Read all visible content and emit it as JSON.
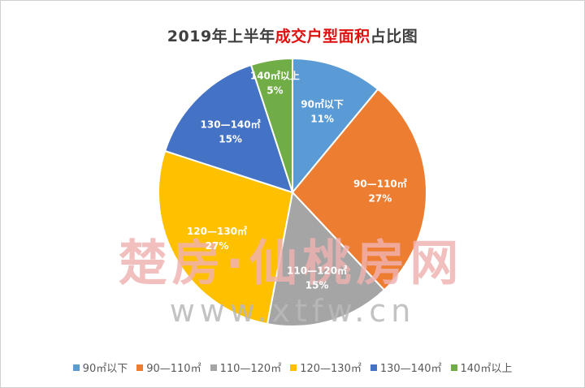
{
  "title": {
    "prefix": "2019年上半年",
    "highlight": "成交户型面积",
    "suffix": "占比图",
    "highlight_color": "#e01010"
  },
  "watermark": {
    "brand": "楚房·仙桃房网",
    "url": "www.xtfw.cn"
  },
  "chart_data": {
    "type": "pie",
    "title": "2019年上半年成交户型面积占比图",
    "start_angle_deg": 0,
    "direction": "clockwise",
    "legend_position": "bottom",
    "slices": [
      {
        "label": "90㎡以下",
        "value": 11,
        "percent": "11%",
        "color": "#5b9bd5"
      },
      {
        "label": "90—110㎡",
        "value": 27,
        "percent": "27%",
        "color": "#ed7d31"
      },
      {
        "label": "110—120㎡",
        "value": 15,
        "percent": "15%",
        "color": "#a5a5a5"
      },
      {
        "label": "120—130㎡",
        "value": 27,
        "percent": "27%",
        "color": "#ffc000"
      },
      {
        "label": "130—140㎡",
        "value": 15,
        "percent": "15%",
        "color": "#4472c4"
      },
      {
        "label": "140㎡以上",
        "value": 5,
        "percent": "5%",
        "color": "#70ad47"
      }
    ]
  }
}
